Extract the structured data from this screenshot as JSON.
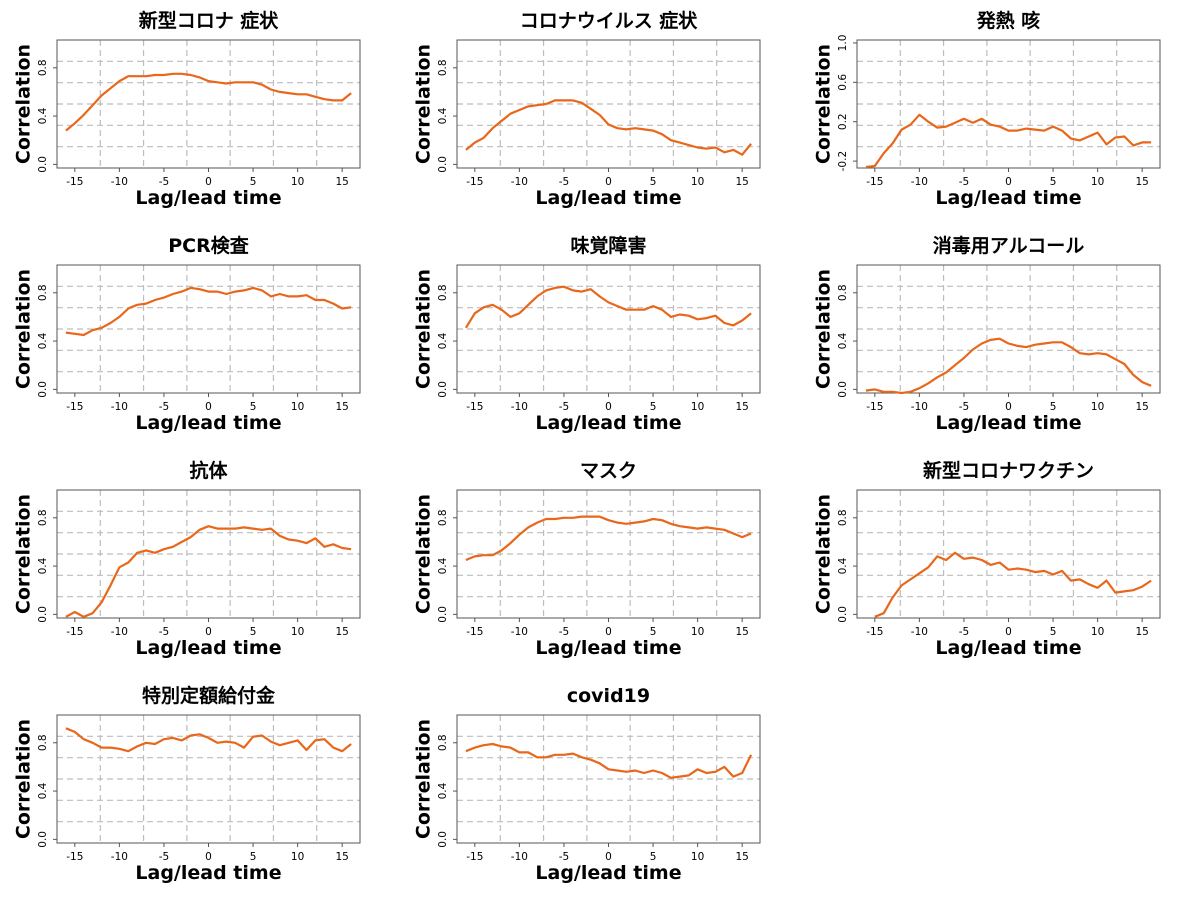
{
  "figure": {
    "xlabel": "Lag/lead time",
    "ylabel": "Correlation"
  },
  "chart_data": [
    {
      "type": "line",
      "title": "新型コロナ 症状",
      "xlabel": "Lag/lead time",
      "ylabel": "Correlation",
      "xlim": [
        -17,
        17
      ],
      "ylim": [
        -0.03,
        1.03
      ],
      "xticks": [
        -15,
        -10,
        -5,
        0,
        5,
        10,
        15
      ],
      "yticks": [
        0.0,
        0.4,
        0.8
      ],
      "ytick_labels": [
        "0.0",
        "0.4",
        "0.8"
      ],
      "grid": true,
      "x": [
        -16,
        -15,
        -14,
        -13,
        -12,
        -11,
        -10,
        -9,
        -8,
        -7,
        -6,
        -5,
        -4,
        -3,
        -2,
        -1,
        0,
        1,
        2,
        3,
        4,
        5,
        6,
        7,
        8,
        9,
        10,
        11,
        12,
        13,
        14,
        15,
        16
      ],
      "series": [
        {
          "values": [
            0.28,
            0.34,
            0.41,
            0.49,
            0.57,
            0.63,
            0.69,
            0.73,
            0.73,
            0.73,
            0.74,
            0.74,
            0.75,
            0.75,
            0.74,
            0.72,
            0.69,
            0.68,
            0.67,
            0.68,
            0.68,
            0.68,
            0.66,
            0.62,
            0.6,
            0.59,
            0.58,
            0.58,
            0.56,
            0.54,
            0.53,
            0.53,
            0.59
          ]
        }
      ]
    },
    {
      "type": "line",
      "title": "コロナウイルス 症状",
      "xlabel": "Lag/lead time",
      "ylabel": "Correlation",
      "xlim": [
        -17,
        17
      ],
      "ylim": [
        -0.03,
        1.03
      ],
      "xticks": [
        -15,
        -10,
        -5,
        0,
        5,
        10,
        15
      ],
      "yticks": [
        0.0,
        0.4,
        0.8
      ],
      "ytick_labels": [
        "0.0",
        "0.4",
        "0.8"
      ],
      "grid": true,
      "x": [
        -16,
        -15,
        -14,
        -13,
        -12,
        -11,
        -10,
        -9,
        -8,
        -7,
        -6,
        -5,
        -4,
        -3,
        -2,
        -1,
        0,
        1,
        2,
        3,
        4,
        5,
        6,
        7,
        8,
        9,
        10,
        11,
        12,
        13,
        14,
        15,
        16
      ],
      "series": [
        {
          "values": [
            0.12,
            0.18,
            0.22,
            0.3,
            0.36,
            0.42,
            0.45,
            0.48,
            0.49,
            0.5,
            0.53,
            0.53,
            0.53,
            0.51,
            0.46,
            0.41,
            0.33,
            0.3,
            0.29,
            0.3,
            0.29,
            0.28,
            0.25,
            0.2,
            0.18,
            0.16,
            0.14,
            0.13,
            0.14,
            0.1,
            0.12,
            0.08,
            0.17
          ]
        }
      ]
    },
    {
      "type": "line",
      "title": "発熱 咳",
      "xlabel": "Lag/lead time",
      "ylabel": "Correlation",
      "xlim": [
        -17,
        17
      ],
      "ylim": [
        -0.27,
        1.03
      ],
      "xticks": [
        -15,
        -10,
        -5,
        0,
        5,
        10,
        15
      ],
      "yticks": [
        -0.2,
        0.2,
        0.6,
        1.0
      ],
      "ytick_labels": [
        "-0.2",
        "0.2",
        "0.6",
        "1.0"
      ],
      "grid": true,
      "x": [
        -16,
        -15,
        -14,
        -13,
        -12,
        -11,
        -10,
        -9,
        -8,
        -7,
        -6,
        -5,
        -4,
        -3,
        -2,
        -1,
        0,
        1,
        2,
        3,
        4,
        5,
        6,
        7,
        8,
        9,
        10,
        11,
        12,
        13,
        14,
        15,
        16
      ],
      "series": [
        {
          "values": [
            -0.26,
            -0.25,
            -0.12,
            -0.02,
            0.12,
            0.17,
            0.27,
            0.2,
            0.14,
            0.15,
            0.19,
            0.23,
            0.19,
            0.23,
            0.17,
            0.15,
            0.11,
            0.11,
            0.13,
            0.12,
            0.11,
            0.15,
            0.11,
            0.03,
            0.01,
            0.05,
            0.09,
            -0.03,
            0.04,
            0.05,
            -0.04,
            -0.01,
            -0.01
          ]
        }
      ]
    },
    {
      "type": "line",
      "title": "PCR検査",
      "xlabel": "Lag/lead time",
      "ylabel": "Correlation",
      "xlim": [
        -17,
        17
      ],
      "ylim": [
        -0.03,
        1.03
      ],
      "xticks": [
        -15,
        -10,
        -5,
        0,
        5,
        10,
        15
      ],
      "yticks": [
        0.0,
        0.4,
        0.8
      ],
      "ytick_labels": [
        "0.0",
        "0.4",
        "0.8"
      ],
      "grid": true,
      "x": [
        -16,
        -15,
        -14,
        -13,
        -12,
        -11,
        -10,
        -9,
        -8,
        -7,
        -6,
        -5,
        -4,
        -3,
        -2,
        -1,
        0,
        1,
        2,
        3,
        4,
        5,
        6,
        7,
        8,
        9,
        10,
        11,
        12,
        13,
        14,
        15,
        16
      ],
      "series": [
        {
          "values": [
            0.47,
            0.46,
            0.45,
            0.49,
            0.51,
            0.55,
            0.6,
            0.67,
            0.7,
            0.71,
            0.74,
            0.76,
            0.79,
            0.81,
            0.84,
            0.83,
            0.81,
            0.81,
            0.79,
            0.81,
            0.82,
            0.84,
            0.82,
            0.77,
            0.79,
            0.77,
            0.77,
            0.78,
            0.74,
            0.74,
            0.71,
            0.67,
            0.68
          ]
        }
      ]
    },
    {
      "type": "line",
      "title": "味覚障害",
      "xlabel": "Lag/lead time",
      "ylabel": "Correlation",
      "xlim": [
        -17,
        17
      ],
      "ylim": [
        -0.03,
        1.03
      ],
      "xticks": [
        -15,
        -10,
        -5,
        0,
        5,
        10,
        15
      ],
      "yticks": [
        0.0,
        0.4,
        0.8
      ],
      "ytick_labels": [
        "0.0",
        "0.4",
        "0.8"
      ],
      "grid": true,
      "x": [
        -16,
        -15,
        -14,
        -13,
        -12,
        -11,
        -10,
        -9,
        -8,
        -7,
        -6,
        -5,
        -4,
        -3,
        -2,
        -1,
        0,
        1,
        2,
        3,
        4,
        5,
        6,
        7,
        8,
        9,
        10,
        11,
        12,
        13,
        14,
        15,
        16
      ],
      "series": [
        {
          "values": [
            0.51,
            0.63,
            0.68,
            0.7,
            0.66,
            0.6,
            0.63,
            0.7,
            0.77,
            0.82,
            0.84,
            0.85,
            0.82,
            0.81,
            0.83,
            0.77,
            0.72,
            0.69,
            0.66,
            0.66,
            0.66,
            0.69,
            0.66,
            0.6,
            0.62,
            0.61,
            0.58,
            0.59,
            0.61,
            0.55,
            0.53,
            0.57,
            0.63
          ]
        }
      ]
    },
    {
      "type": "line",
      "title": "消毒用アルコール",
      "xlabel": "Lag/lead time",
      "ylabel": "Correlation",
      "xlim": [
        -17,
        17
      ],
      "ylim": [
        -0.03,
        1.03
      ],
      "xticks": [
        -15,
        -10,
        -5,
        0,
        5,
        10,
        15
      ],
      "yticks": [
        0.0,
        0.4,
        0.8
      ],
      "ytick_labels": [
        "0.0",
        "0.4",
        "0.8"
      ],
      "grid": true,
      "x": [
        -16,
        -15,
        -14,
        -13,
        -12,
        -11,
        -10,
        -9,
        -8,
        -7,
        -6,
        -5,
        -4,
        -3,
        -2,
        -1,
        0,
        1,
        2,
        3,
        4,
        5,
        6,
        7,
        8,
        9,
        10,
        11,
        12,
        13,
        14,
        15,
        16
      ],
      "series": [
        {
          "values": [
            -0.01,
            0.0,
            -0.02,
            -0.02,
            -0.03,
            -0.02,
            0.01,
            0.05,
            0.1,
            0.14,
            0.2,
            0.26,
            0.33,
            0.38,
            0.41,
            0.42,
            0.38,
            0.36,
            0.35,
            0.37,
            0.38,
            0.39,
            0.39,
            0.35,
            0.3,
            0.29,
            0.3,
            0.29,
            0.25,
            0.21,
            0.12,
            0.06,
            0.03
          ]
        }
      ]
    },
    {
      "type": "line",
      "title": "抗体",
      "xlabel": "Lag/lead time",
      "ylabel": "Correlation",
      "xlim": [
        -17,
        17
      ],
      "ylim": [
        -0.03,
        1.03
      ],
      "xticks": [
        -15,
        -10,
        -5,
        0,
        5,
        10,
        15
      ],
      "yticks": [
        0.0,
        0.4,
        0.8
      ],
      "ytick_labels": [
        "0.0",
        "0.4",
        "0.8"
      ],
      "grid": true,
      "x": [
        -16,
        -15,
        -14,
        -13,
        -12,
        -11,
        -10,
        -9,
        -8,
        -7,
        -6,
        -5,
        -4,
        -3,
        -2,
        -1,
        0,
        1,
        2,
        3,
        4,
        5,
        6,
        7,
        8,
        9,
        10,
        11,
        12,
        13,
        14,
        15,
        16
      ],
      "series": [
        {
          "values": [
            -0.02,
            0.02,
            -0.02,
            0.01,
            0.1,
            0.24,
            0.39,
            0.43,
            0.51,
            0.53,
            0.51,
            0.54,
            0.56,
            0.6,
            0.64,
            0.7,
            0.73,
            0.71,
            0.71,
            0.71,
            0.72,
            0.71,
            0.7,
            0.71,
            0.65,
            0.62,
            0.61,
            0.59,
            0.63,
            0.56,
            0.58,
            0.55,
            0.54
          ]
        }
      ]
    },
    {
      "type": "line",
      "title": "マスク",
      "xlabel": "Lag/lead time",
      "ylabel": "Correlation",
      "xlim": [
        -17,
        17
      ],
      "ylim": [
        -0.03,
        1.03
      ],
      "xticks": [
        -15,
        -10,
        -5,
        0,
        5,
        10,
        15
      ],
      "yticks": [
        0.0,
        0.4,
        0.8
      ],
      "ytick_labels": [
        "0.0",
        "0.4",
        "0.8"
      ],
      "grid": true,
      "x": [
        -16,
        -15,
        -14,
        -13,
        -12,
        -11,
        -10,
        -9,
        -8,
        -7,
        -6,
        -5,
        -4,
        -3,
        -2,
        -1,
        0,
        1,
        2,
        3,
        4,
        5,
        6,
        7,
        8,
        9,
        10,
        11,
        12,
        13,
        14,
        15,
        16
      ],
      "series": [
        {
          "values": [
            0.45,
            0.48,
            0.49,
            0.49,
            0.53,
            0.59,
            0.66,
            0.72,
            0.76,
            0.79,
            0.79,
            0.8,
            0.8,
            0.81,
            0.81,
            0.81,
            0.78,
            0.76,
            0.75,
            0.76,
            0.77,
            0.79,
            0.78,
            0.75,
            0.73,
            0.72,
            0.71,
            0.72,
            0.71,
            0.7,
            0.67,
            0.64,
            0.67
          ]
        }
      ]
    },
    {
      "type": "line",
      "title": "新型コロナワクチン",
      "xlabel": "Lag/lead time",
      "ylabel": "Correlation",
      "xlim": [
        -17,
        17
      ],
      "ylim": [
        -0.03,
        1.03
      ],
      "xticks": [
        -15,
        -10,
        -5,
        0,
        5,
        10,
        15
      ],
      "yticks": [
        0.0,
        0.4,
        0.8
      ],
      "ytick_labels": [
        "0.0",
        "0.4",
        "0.8"
      ],
      "grid": true,
      "x": [
        -16,
        -15,
        -14,
        -13,
        -12,
        -11,
        -10,
        -9,
        -8,
        -7,
        -6,
        -5,
        -4,
        -3,
        -2,
        -1,
        0,
        1,
        2,
        3,
        4,
        5,
        6,
        7,
        8,
        9,
        10,
        11,
        12,
        13,
        14,
        15,
        16
      ],
      "series": [
        {
          "values": [
            null,
            -0.02,
            0.01,
            0.14,
            0.24,
            0.29,
            0.34,
            0.39,
            0.48,
            0.45,
            0.51,
            0.46,
            0.47,
            0.45,
            0.41,
            0.43,
            0.37,
            0.38,
            0.37,
            0.35,
            0.36,
            0.33,
            0.36,
            0.28,
            0.29,
            0.25,
            0.22,
            0.28,
            0.18,
            0.19,
            0.2,
            0.23,
            0.28
          ]
        }
      ]
    },
    {
      "type": "line",
      "title": "特別定額給付金",
      "xlabel": "Lag/lead time",
      "ylabel": "Correlation",
      "xlim": [
        -17,
        17
      ],
      "ylim": [
        -0.03,
        1.03
      ],
      "xticks": [
        -15,
        -10,
        -5,
        0,
        5,
        10,
        15
      ],
      "yticks": [
        0.0,
        0.4,
        0.8
      ],
      "ytick_labels": [
        "0.0",
        "0.4",
        "0.8"
      ],
      "grid": true,
      "x": [
        -16,
        -15,
        -14,
        -13,
        -12,
        -11,
        -10,
        -9,
        -8,
        -7,
        -6,
        -5,
        -4,
        -3,
        -2,
        -1,
        0,
        1,
        2,
        3,
        4,
        5,
        6,
        7,
        8,
        9,
        10,
        11,
        12,
        13,
        14,
        15,
        16
      ],
      "series": [
        {
          "values": [
            0.92,
            0.89,
            0.83,
            0.8,
            0.76,
            0.76,
            0.75,
            0.73,
            0.77,
            0.8,
            0.79,
            0.83,
            0.84,
            0.82,
            0.86,
            0.87,
            0.84,
            0.8,
            0.81,
            0.8,
            0.76,
            0.85,
            0.86,
            0.81,
            0.78,
            0.8,
            0.82,
            0.74,
            0.82,
            0.83,
            0.76,
            0.73,
            0.79
          ]
        }
      ]
    },
    {
      "type": "line",
      "title": "covid19",
      "xlabel": "Lag/lead time",
      "ylabel": "Correlation",
      "xlim": [
        -17,
        17
      ],
      "ylim": [
        -0.03,
        1.03
      ],
      "xticks": [
        -15,
        -10,
        -5,
        0,
        5,
        10,
        15
      ],
      "yticks": [
        0.0,
        0.4,
        0.8
      ],
      "ytick_labels": [
        "0.0",
        "0.4",
        "0.8"
      ],
      "grid": true,
      "x": [
        -16,
        -15,
        -14,
        -13,
        -12,
        -11,
        -10,
        -9,
        -8,
        -7,
        -6,
        -5,
        -4,
        -3,
        -2,
        -1,
        0,
        1,
        2,
        3,
        4,
        5,
        6,
        7,
        8,
        9,
        10,
        11,
        12,
        13,
        14,
        15,
        16
      ],
      "series": [
        {
          "values": [
            0.73,
            0.76,
            0.78,
            0.79,
            0.77,
            0.76,
            0.72,
            0.72,
            0.68,
            0.68,
            0.7,
            0.7,
            0.71,
            0.68,
            0.66,
            0.63,
            0.58,
            0.57,
            0.56,
            0.57,
            0.55,
            0.57,
            0.55,
            0.51,
            0.52,
            0.53,
            0.58,
            0.55,
            0.56,
            0.6,
            0.52,
            0.55,
            0.7
          ]
        }
      ]
    }
  ]
}
